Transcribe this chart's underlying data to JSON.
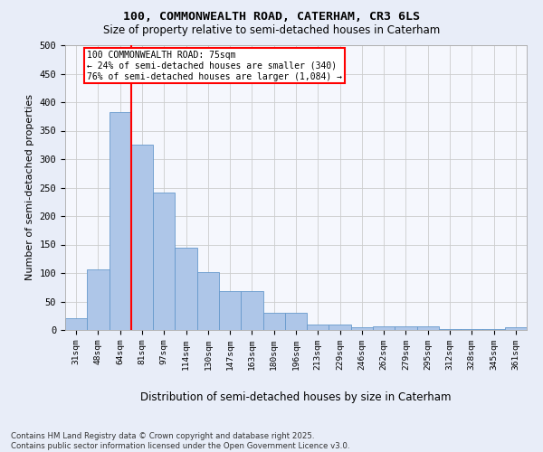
{
  "title_line1": "100, COMMONWEALTH ROAD, CATERHAM, CR3 6LS",
  "title_line2": "Size of property relative to semi-detached houses in Caterham",
  "xlabel": "Distribution of semi-detached houses by size in Caterham",
  "ylabel": "Number of semi-detached properties",
  "categories": [
    "31sqm",
    "48sqm",
    "64sqm",
    "81sqm",
    "97sqm",
    "114sqm",
    "130sqm",
    "147sqm",
    "163sqm",
    "180sqm",
    "196sqm",
    "213sqm",
    "229sqm",
    "246sqm",
    "262sqm",
    "279sqm",
    "295sqm",
    "312sqm",
    "328sqm",
    "345sqm",
    "361sqm"
  ],
  "values": [
    20,
    107,
    383,
    325,
    241,
    144,
    101,
    69,
    69,
    30,
    30,
    10,
    10,
    5,
    6,
    6,
    6,
    1,
    1,
    1,
    4
  ],
  "bar_color": "#aec6e8",
  "bar_edge_color": "#6699cc",
  "vline_color": "red",
  "annotation_text": "100 COMMONWEALTH ROAD: 75sqm\n← 24% of semi-detached houses are smaller (340)\n76% of semi-detached houses are larger (1,084) →",
  "annotation_box_color": "white",
  "annotation_box_edge": "red",
  "ylim": [
    0,
    500
  ],
  "yticks": [
    0,
    50,
    100,
    150,
    200,
    250,
    300,
    350,
    400,
    450,
    500
  ],
  "footer": "Contains HM Land Registry data © Crown copyright and database right 2025.\nContains public sector information licensed under the Open Government Licence v3.0.",
  "bg_color": "#e8edf8",
  "plot_bg_color": "#f5f7fd",
  "grid_color": "#cccccc"
}
